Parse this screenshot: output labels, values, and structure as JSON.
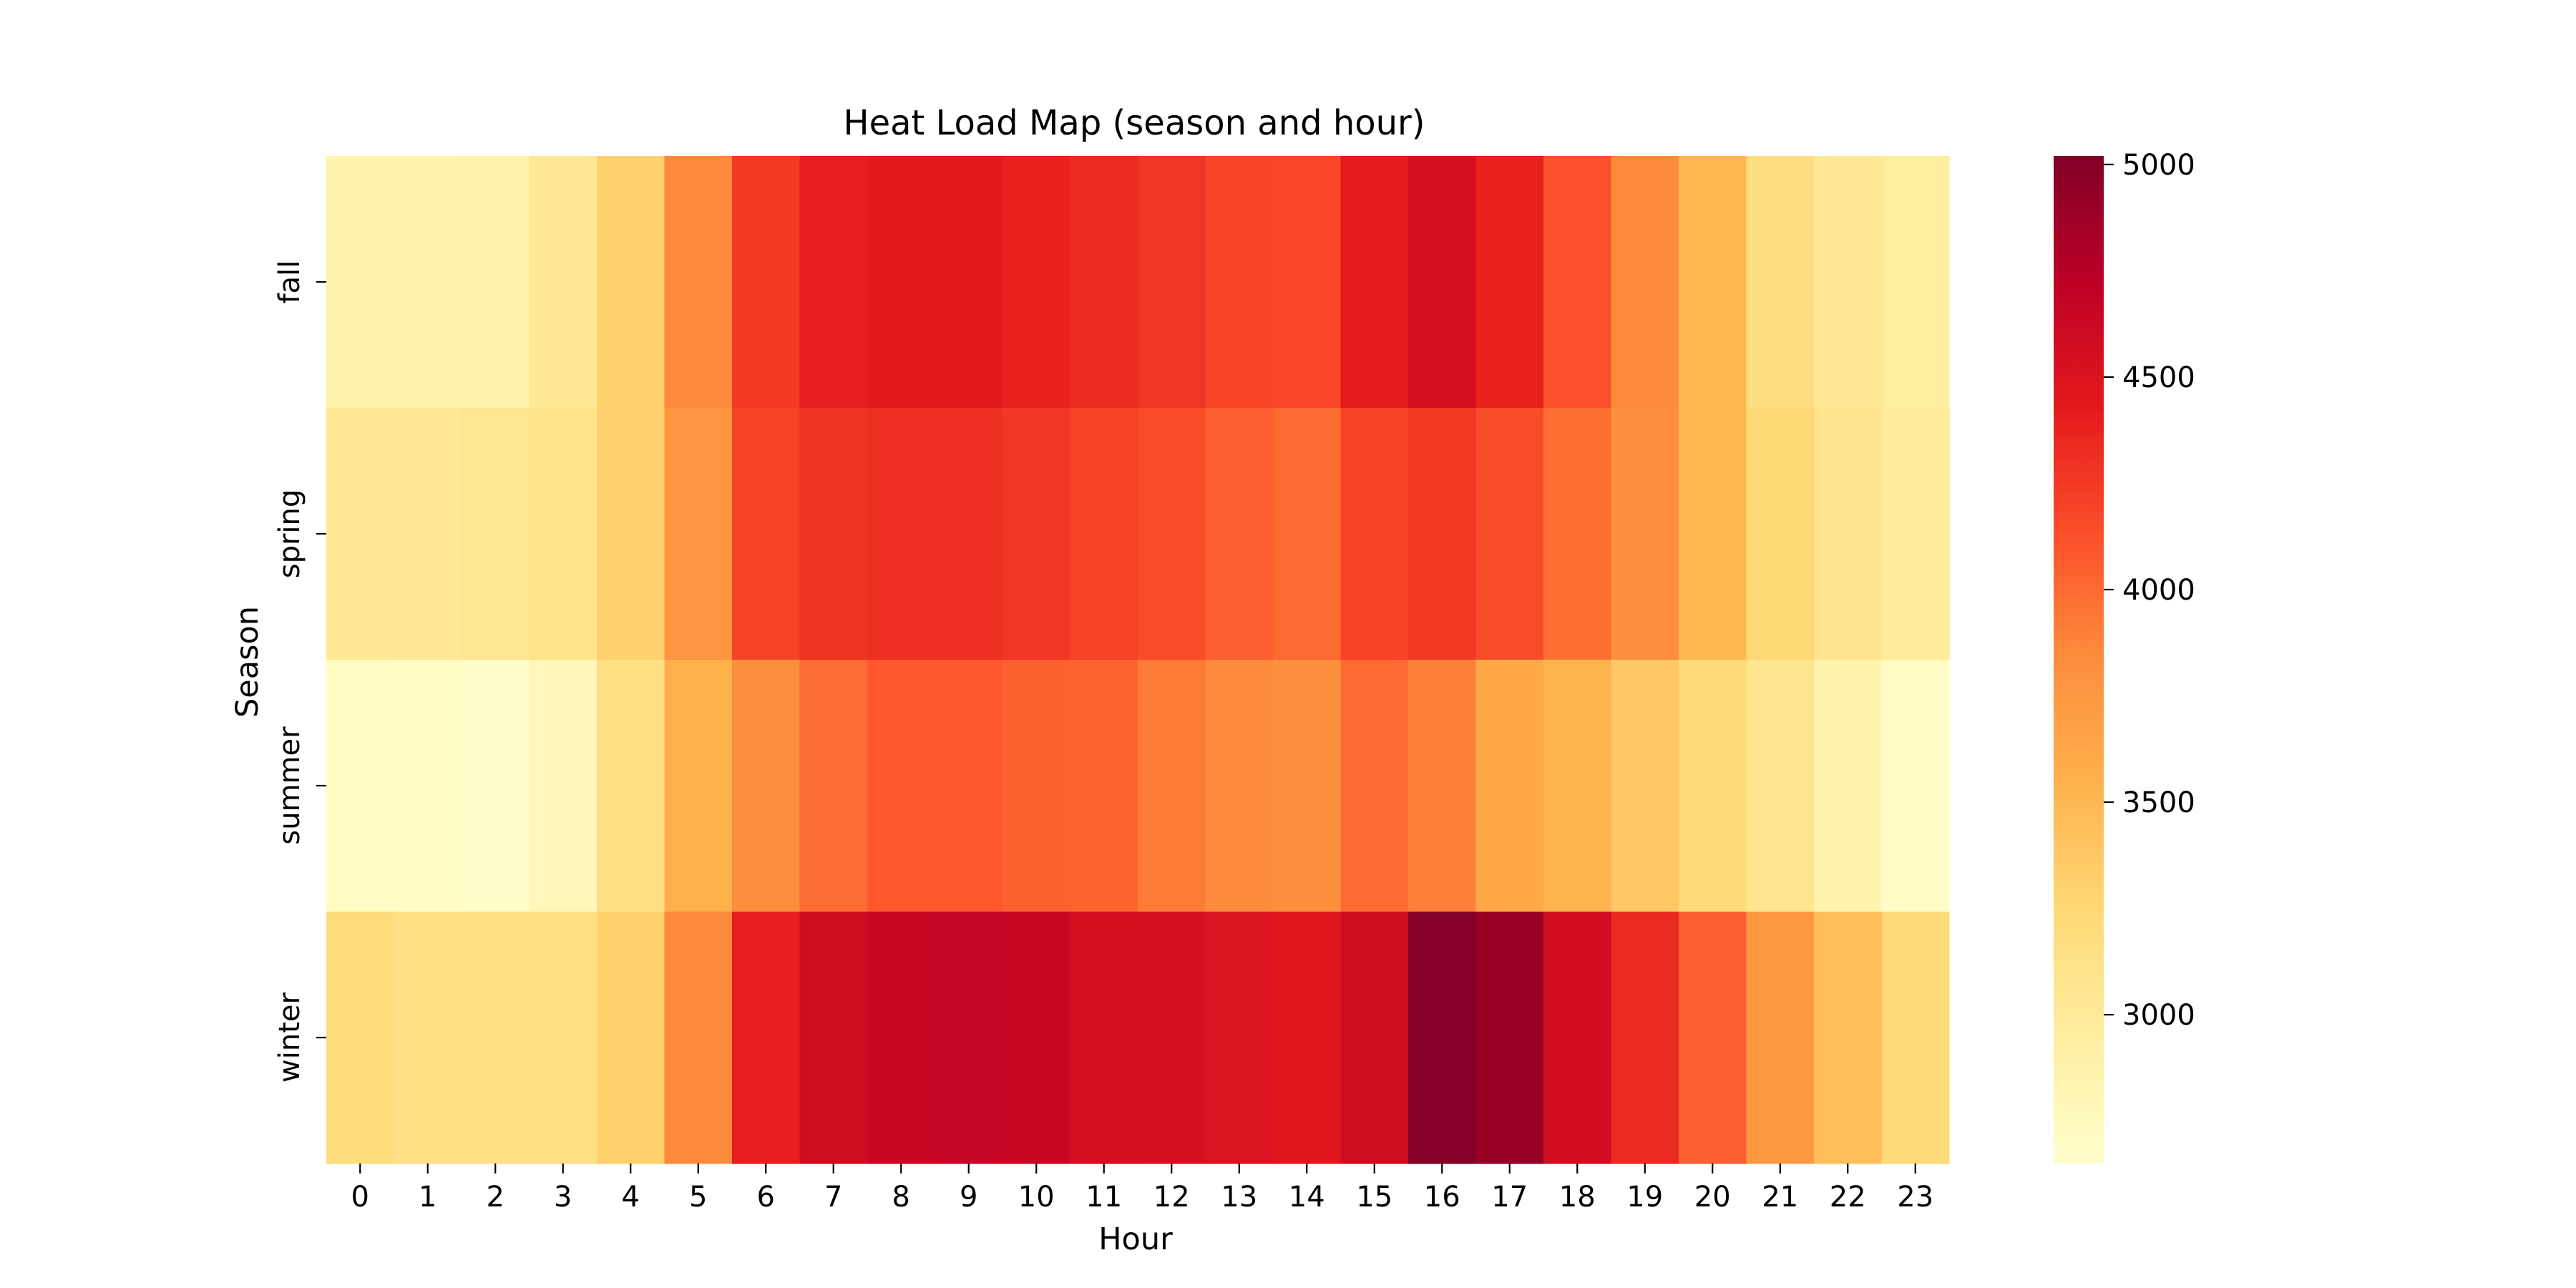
{
  "chart_data": {
    "type": "heatmap",
    "title": "Heat Load Map (season and hour)",
    "xlabel": "Hour",
    "ylabel": "Season",
    "x_categories": [
      "0",
      "1",
      "2",
      "3",
      "4",
      "5",
      "6",
      "7",
      "8",
      "9",
      "10",
      "11",
      "12",
      "13",
      "14",
      "15",
      "16",
      "17",
      "18",
      "19",
      "20",
      "21",
      "22",
      "23"
    ],
    "y_categories": [
      "fall",
      "spring",
      "summer",
      "winter"
    ],
    "values": [
      [
        2850,
        2850,
        2870,
        3020,
        3300,
        3850,
        4250,
        4400,
        4430,
        4430,
        4390,
        4330,
        4270,
        4180,
        4170,
        4420,
        4550,
        4380,
        4120,
        3850,
        3500,
        3170,
        3020,
        2950
      ],
      [
        3020,
        3020,
        3050,
        3100,
        3300,
        3780,
        4200,
        4280,
        4300,
        4300,
        4260,
        4200,
        4150,
        4050,
        4000,
        4200,
        4250,
        4150,
        3980,
        3820,
        3500,
        3250,
        3080,
        2980
      ],
      [
        2720,
        2700,
        2680,
        2780,
        3150,
        3550,
        3830,
        3990,
        4090,
        4090,
        4040,
        4030,
        3920,
        3840,
        3810,
        4000,
        3900,
        3620,
        3520,
        3370,
        3220,
        3070,
        2850,
        2700
      ],
      [
        3200,
        3150,
        3150,
        3150,
        3320,
        3850,
        4400,
        4580,
        4640,
        4660,
        4640,
        4550,
        4540,
        4500,
        4460,
        4580,
        5000,
        4900,
        4570,
        4340,
        4050,
        3750,
        3450,
        3230
      ]
    ],
    "vmin": 2650,
    "vmax": 5020,
    "colorbar_ticks": [
      3000,
      3500,
      4000,
      4500,
      5000
    ],
    "colorbar_tick_labels": [
      "3000",
      "3500",
      "4000",
      "4500",
      "5000"
    ],
    "colormap": "YlOrRd",
    "colormap_stops": [
      "#ffffcc",
      "#ffeda0",
      "#fed976",
      "#feb24c",
      "#fd8d3c",
      "#fc4e2a",
      "#e31a1c",
      "#bd0026",
      "#800026"
    ],
    "grid": false,
    "legend": "colorbar-right"
  }
}
